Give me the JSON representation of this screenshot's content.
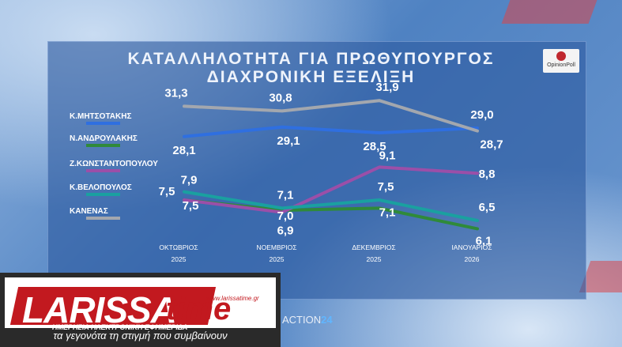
{
  "title_line1": "ΚΑΤΑΛΛΗΛΟΤΗΤΑ ΓΙΑ ΠΡΩΘΥΠΟΥΡΓΟΣ",
  "title_line2": "ΔΙΑΧΡΟΝΙΚΗ ΕΞΕΛΙΞΗ",
  "logo_text": "OpinionPoll",
  "banner": {
    "brand_main": "LARISSA",
    "brand_time": "time",
    "site": "www.larissatime.gr",
    "subtitle": "ΗΜΕΡΗΣΙΑ ΗΛΕΚΤΡΟΝΙΚΗ ΕΦΗΜΕΡΙΔΑ",
    "tagline": "τα γεγονότα τη στιγμή που συμβαίνουν"
  },
  "channel_logo": {
    "text": "ACTION",
    "number": "24"
  },
  "chart_data": {
    "type": "line",
    "title": "ΚΑΤΑΛΛΗΛΟΤΗΤΑ ΓΙΑ ΠΡΩΘΥΠΟΥΡΓΟΣ ΔΙΑΧΡΟΝΙΚΗ ΕΞΕΛΙΞΗ",
    "categories": [
      {
        "month": "ΟΚΤΩΒΡΙΟΣ",
        "year": "2025"
      },
      {
        "month": "ΝΟΕΜΒΡΙΟΣ",
        "year": "2025"
      },
      {
        "month": "ΔΕΚΕΜΒΡΙΟΣ",
        "year": "2025"
      },
      {
        "month": "ΙΑΝΟΥΑΡΙΟΣ",
        "year": "2026"
      }
    ],
    "legend_position": "left",
    "series": [
      {
        "name": "Κ.ΜΗΤΣΟΤΑΚΗΣ",
        "color": "#2f6fe0",
        "values": [
          28.1,
          29.1,
          28.5,
          29.0
        ],
        "labels": [
          "28,1",
          "29,1",
          "28,5",
          "29,0"
        ]
      },
      {
        "name": "Ν.ΑΝΔΡΟΥΛΑΚΗΣ",
        "color": "#2f8a3a",
        "values": [
          7.5,
          7.0,
          7.1,
          6.1
        ],
        "labels": [
          "7,5",
          "7,0",
          "7,1",
          "6,1"
        ]
      },
      {
        "name": "Ζ.ΚΩΝΣΤΑΝΤΟΠΟΥΛΟΥ",
        "color": "#9b4fa8",
        "values": [
          7.5,
          6.9,
          9.1,
          8.8
        ],
        "labels": [
          "7,5",
          "6,9",
          "9,1",
          "8,8"
        ]
      },
      {
        "name": "Κ.ΒΕΛΟΠΟΥΛΟΣ",
        "color": "#1aa0a0",
        "values": [
          7.9,
          7.1,
          7.5,
          6.5
        ],
        "labels": [
          "7,9",
          "7,1",
          "7,5",
          "6,5"
        ]
      },
      {
        "name": "ΚΑΝΕΝΑΣ",
        "color": "#a3a7ae",
        "values": [
          31.3,
          30.8,
          31.9,
          28.7
        ],
        "labels": [
          "31,3",
          "30,8",
          "31,9",
          "28,7"
        ]
      }
    ]
  }
}
